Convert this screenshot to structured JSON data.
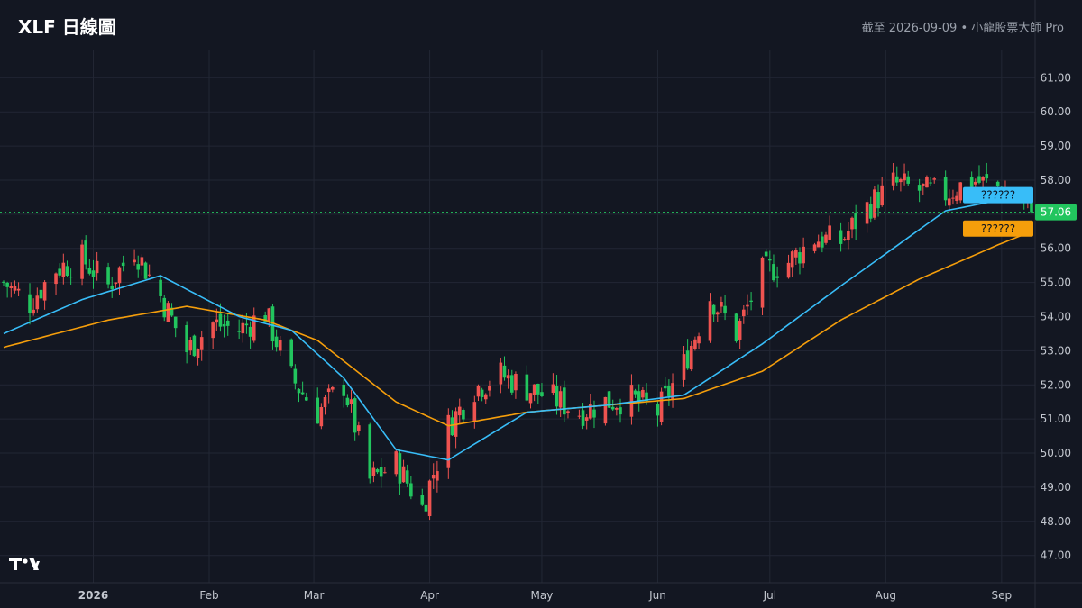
{
  "header": {
    "title": "XLF 日線圖",
    "subtitle": "截至 2026-09-09 • 小龍股票大師 Pro"
  },
  "colors": {
    "background": "#131722",
    "grid": "#222734",
    "up": "#ef5350",
    "down": "#22c55e",
    "ma_fast": "#38bdf8",
    "ma_slow": "#f59e0b",
    "last_price": "#22c55e",
    "axis_text": "#c3c7cf"
  },
  "chart_data": {
    "type": "candlestick",
    "title": "XLF 日線圖",
    "ylim": [
      46.2,
      61.8
    ],
    "y_ticks": [
      "47.00",
      "48.00",
      "49.00",
      "50.00",
      "51.00",
      "52.00",
      "53.00",
      "54.00",
      "55.00",
      "56.00",
      "57.00",
      "58.00",
      "59.00",
      "60.00",
      "61.00"
    ],
    "x_tick_labels": [
      {
        "label": "2026",
        "date": "2026-01-01",
        "bold": true
      },
      {
        "label": "Feb",
        "date": "2026-02-01"
      },
      {
        "label": "Mar",
        "date": "2026-03-01"
      },
      {
        "label": "Apr",
        "date": "2026-04-01"
      },
      {
        "label": "May",
        "date": "2026-05-01"
      },
      {
        "label": "Jun",
        "date": "2026-06-01"
      },
      {
        "label": "Jul",
        "date": "2026-07-01"
      },
      {
        "label": "Aug",
        "date": "2026-08-01"
      },
      {
        "label": "Sep",
        "date": "2026-09-01"
      }
    ],
    "x_range": [
      "2025-12-08",
      "2026-09-09"
    ],
    "candle_color_convention": "red = up, green = down",
    "close_anchors": [
      [
        "2025-12-08",
        55.0
      ],
      [
        "2025-12-15",
        54.4
      ],
      [
        "2025-12-22",
        55.4
      ],
      [
        "2025-12-29",
        55.7
      ],
      [
        "2026-01-05",
        54.9
      ],
      [
        "2026-01-12",
        56.0
      ],
      [
        "2026-01-19",
        54.6
      ],
      [
        "2026-01-26",
        53.0
      ],
      [
        "2026-02-02",
        53.8
      ],
      [
        "2026-02-09",
        53.6
      ],
      [
        "2026-02-16",
        54.1
      ],
      [
        "2026-02-23",
        52.2
      ],
      [
        "2026-03-02",
        51.2
      ],
      [
        "2026-03-09",
        52.0
      ],
      [
        "2026-03-16",
        49.2
      ],
      [
        "2026-03-23",
        49.7
      ],
      [
        "2026-03-30",
        48.4
      ],
      [
        "2026-04-06",
        50.8
      ],
      [
        "2026-04-13",
        51.9
      ],
      [
        "2026-04-20",
        52.3
      ],
      [
        "2026-04-27",
        51.9
      ],
      [
        "2026-05-04",
        51.6
      ],
      [
        "2026-05-11",
        51.2
      ],
      [
        "2026-05-18",
        51.5
      ],
      [
        "2026-05-25",
        51.6
      ],
      [
        "2026-06-01",
        51.2
      ],
      [
        "2026-06-08",
        52.6
      ],
      [
        "2026-06-15",
        54.6
      ],
      [
        "2026-06-22",
        53.5
      ],
      [
        "2026-06-29",
        55.3
      ],
      [
        "2026-07-06",
        55.6
      ],
      [
        "2026-07-13",
        56.3
      ],
      [
        "2026-07-20",
        56.2
      ],
      [
        "2026-07-27",
        57.2
      ],
      [
        "2026-08-03",
        57.9
      ],
      [
        "2026-08-10",
        57.7
      ],
      [
        "2026-08-17",
        57.6
      ],
      [
        "2026-08-24",
        58.0
      ],
      [
        "2026-08-31",
        57.8
      ],
      [
        "2026-09-09",
        57.06
      ]
    ],
    "series": [
      {
        "type": "candlestick"
      },
      {
        "type": "line",
        "window": 20
      },
      {
        "type": "line",
        "window": 50
      }
    ],
    "ma_anchors_fast": [
      [
        "2025-12-08",
        53.5
      ],
      [
        "2025-12-29",
        54.5
      ],
      [
        "2026-01-19",
        55.2
      ],
      [
        "2026-02-09",
        54.0
      ],
      [
        "2026-02-23",
        53.6
      ],
      [
        "2026-03-09",
        52.2
      ],
      [
        "2026-03-23",
        50.1
      ],
      [
        "2026-04-06",
        49.8
      ],
      [
        "2026-04-27",
        51.2
      ],
      [
        "2026-05-18",
        51.4
      ],
      [
        "2026-06-08",
        51.7
      ],
      [
        "2026-06-29",
        53.2
      ],
      [
        "2026-07-20",
        54.9
      ],
      [
        "2026-08-03",
        56.0
      ],
      [
        "2026-08-17",
        57.1
      ],
      [
        "2026-09-09",
        57.6
      ]
    ],
    "ma_anchors_slow": [
      [
        "2025-12-08",
        53.1
      ],
      [
        "2026-01-05",
        53.9
      ],
      [
        "2026-01-26",
        54.3
      ],
      [
        "2026-02-16",
        53.9
      ],
      [
        "2026-03-02",
        53.3
      ],
      [
        "2026-03-23",
        51.5
      ],
      [
        "2026-04-06",
        50.8
      ],
      [
        "2026-04-27",
        51.2
      ],
      [
        "2026-05-18",
        51.4
      ],
      [
        "2026-06-08",
        51.6
      ],
      [
        "2026-06-29",
        52.4
      ],
      [
        "2026-07-20",
        53.9
      ],
      [
        "2026-08-10",
        55.1
      ],
      [
        "2026-08-31",
        56.1
      ],
      [
        "2026-09-09",
        56.5
      ]
    ],
    "last_price": 57.06,
    "last_price_label": "57.06",
    "price_tags": [
      {
        "label": "??????",
        "value": 57.56
      },
      {
        "label": "??????",
        "value": 56.58
      }
    ]
  }
}
